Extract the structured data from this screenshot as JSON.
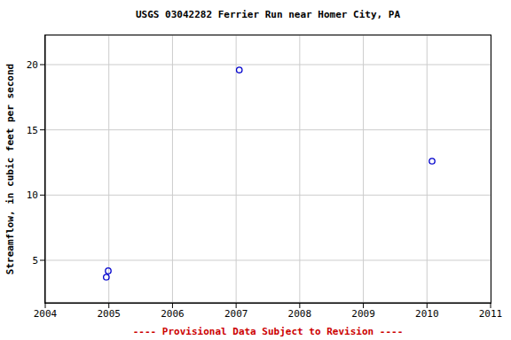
{
  "chart_data": {
    "type": "scatter",
    "title": "USGS 03042282 Ferrier Run near Homer City, PA",
    "y_label": "Streamflow, in cubic feet per second",
    "annotation": "---- Provisional Data Subject to Revision ----",
    "x": [
      2004.96,
      2004.99,
      2007.05,
      2010.08
    ],
    "values": [
      3.71,
      4.19,
      19.59,
      12.6
    ],
    "color": "#0000cc",
    "marker": "circle",
    "xlim": [
      2004,
      2011
    ],
    "xticks": [
      2004,
      2005,
      2006,
      2007,
      2008,
      2009,
      2010,
      2011
    ],
    "ylim": [
      1.74,
      22.24
    ],
    "yticks": [
      5,
      10,
      15,
      20
    ],
    "grid": true
  }
}
